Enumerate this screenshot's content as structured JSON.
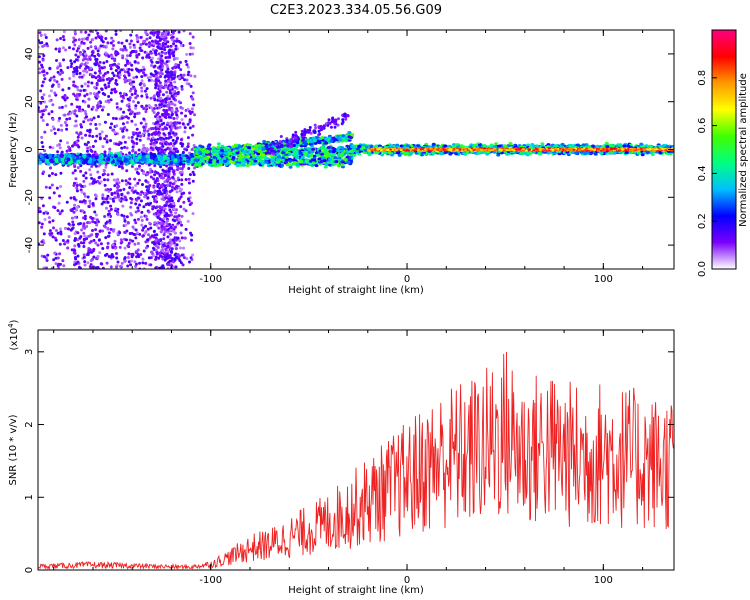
{
  "title": "C2E3.2023.334.05.56.G09",
  "chart_data": [
    {
      "type": "heatmap",
      "xlabel": "Height of straight line (km)",
      "ylabel": "Frequency (Hz)",
      "xlim": [
        -188,
        136
      ],
      "ylim": [
        -50,
        50
      ],
      "xticks": [
        -100,
        0,
        100
      ],
      "yticks": [
        -40,
        -20,
        0,
        20,
        40
      ],
      "colorbar": {
        "label": "Normalized spectral amplitude",
        "range": [
          0,
          1
        ],
        "ticks": [
          "0.0",
          "0.2",
          "0.4",
          "0.6",
          "0.8"
        ],
        "colormap": [
          "#ffffff",
          "#7a00ff",
          "#0000ff",
          "#00c0ff",
          "#00ff80",
          "#40ff00",
          "#ffff00",
          "#ff9900",
          "#ff0000",
          "#ff0080"
        ]
      },
      "features": [
        {
          "x_range": [
            -188,
            -108
          ],
          "f_center": -4,
          "f_spread": 50,
          "amplitude": 0.25,
          "note": "broadband scatter with carrier near -4 Hz"
        },
        {
          "x_range": [
            -108,
            -30
          ],
          "f_center": 0,
          "amplitude": 0.45,
          "note": "signal splits into branches"
        },
        {
          "x_range": [
            -30,
            136
          ],
          "f_center": 0,
          "amplitude": 0.9,
          "note": "strong narrow carrier"
        }
      ]
    },
    {
      "type": "line",
      "xlabel": "Height of straight line (km)",
      "ylabel": "SNR (10 * v/v)",
      "y_scale_label": "(x10",
      "y_scale_exp": "4",
      "y_scale_close": ")",
      "xlim": [
        -188,
        136
      ],
      "ylim": [
        0,
        33000
      ],
      "xticks": [
        -100,
        0,
        100
      ],
      "yticks": [
        0,
        1,
        2,
        3
      ],
      "color": "#ee2222",
      "series": [
        {
          "x": [
            -188,
            -160,
            -130,
            -110,
            -100,
            -90,
            -80,
            -70,
            -60,
            -50,
            -40,
            -30,
            -20,
            -10,
            0,
            10,
            20,
            30,
            40,
            50,
            60,
            70,
            80,
            90,
            100,
            110,
            120,
            130,
            136
          ],
          "y": [
            500,
            700,
            500,
            400,
            800,
            1800,
            3000,
            3500,
            4500,
            5500,
            6500,
            8000,
            9500,
            11000,
            12500,
            14000,
            15500,
            16000,
            17000,
            19000,
            16000,
            17000,
            16000,
            15500,
            16000,
            15500,
            15000,
            14500,
            15000
          ]
        }
      ]
    }
  ]
}
